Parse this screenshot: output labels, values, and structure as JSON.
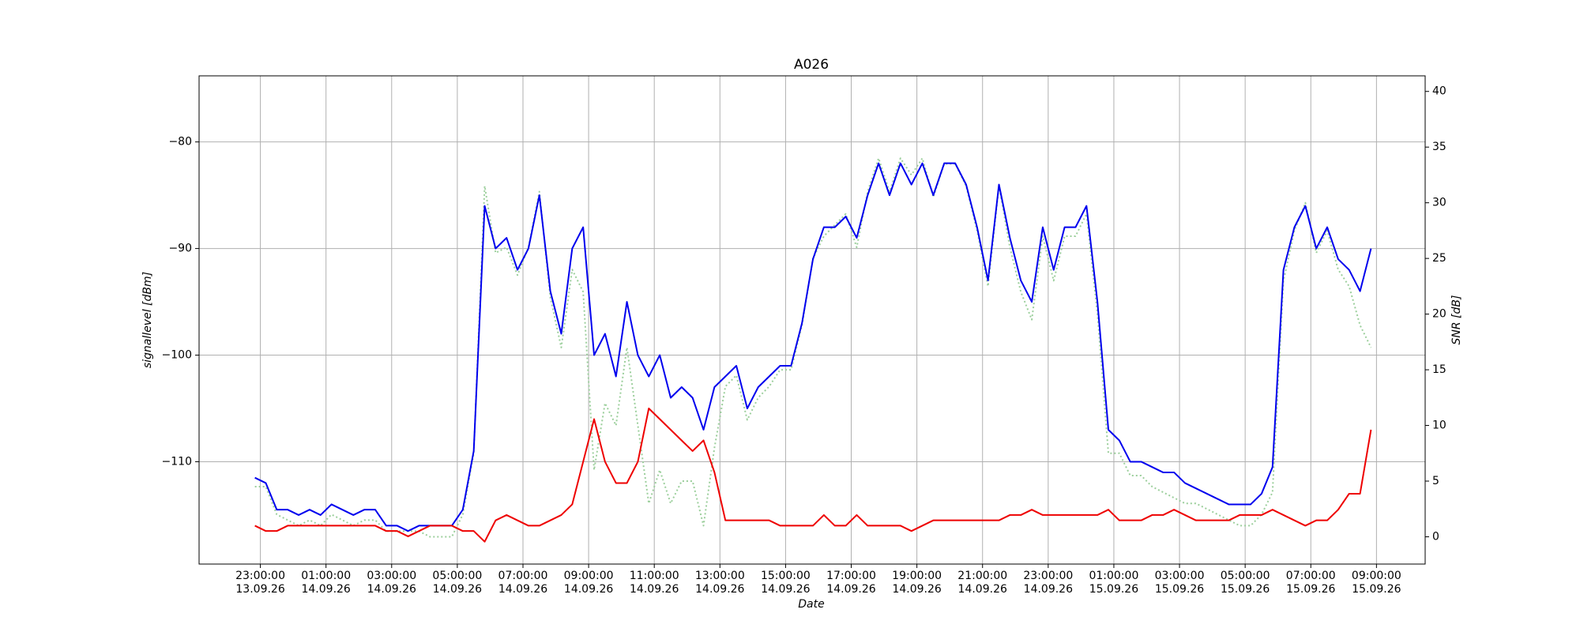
{
  "chart_data": {
    "type": "line",
    "title": "A026",
    "xlabel": "Date",
    "ylabel": "signallevel [dBm]",
    "y2label": "SNR [dB]",
    "grid": true,
    "x": [
      "13.09.26 22:50:00",
      "13.09.26 23:10:00",
      "13.09.26 23:30:00",
      "13.09.26 23:50:00",
      "14.09.26 00:10:00",
      "14.09.26 00:30:00",
      "14.09.26 00:50:00",
      "14.09.26 01:10:00",
      "14.09.26 01:30:00",
      "14.09.26 01:50:00",
      "14.09.26 02:10:00",
      "14.09.26 02:30:00",
      "14.09.26 02:50:00",
      "14.09.26 03:10:00",
      "14.09.26 03:30:00",
      "14.09.26 03:50:00",
      "14.09.26 04:10:00",
      "14.09.26 04:30:00",
      "14.09.26 04:50:00",
      "14.09.26 05:10:00",
      "14.09.26 05:30:00",
      "14.09.26 05:50:00",
      "14.09.26 06:10:00",
      "14.09.26 06:30:00",
      "14.09.26 06:50:00",
      "14.09.26 07:10:00",
      "14.09.26 07:30:00",
      "14.09.26 07:50:00",
      "14.09.26 08:10:00",
      "14.09.26 08:30:00",
      "14.09.26 08:50:00",
      "14.09.26 09:10:00",
      "14.09.26 09:30:00",
      "14.09.26 09:50:00",
      "14.09.26 10:10:00",
      "14.09.26 10:30:00",
      "14.09.26 10:50:00",
      "14.09.26 11:10:00",
      "14.09.26 11:30:00",
      "14.09.26 11:50:00",
      "14.09.26 12:10:00",
      "14.09.26 12:30:00",
      "14.09.26 12:50:00",
      "14.09.26 13:10:00",
      "14.09.26 13:30:00",
      "14.09.26 13:50:00",
      "14.09.26 14:10:00",
      "14.09.26 14:30:00",
      "14.09.26 14:50:00",
      "14.09.26 15:10:00",
      "14.09.26 15:30:00",
      "14.09.26 15:50:00",
      "14.09.26 16:10:00",
      "14.09.26 16:30:00",
      "14.09.26 16:50:00",
      "14.09.26 17:10:00",
      "14.09.26 17:30:00",
      "14.09.26 17:50:00",
      "14.09.26 18:10:00",
      "14.09.26 18:30:00",
      "14.09.26 18:50:00",
      "14.09.26 19:10:00",
      "14.09.26 19:30:00",
      "14.09.26 19:50:00",
      "14.09.26 20:10:00",
      "14.09.26 20:30:00",
      "14.09.26 20:50:00",
      "14.09.26 21:10:00",
      "14.09.26 21:30:00",
      "14.09.26 21:50:00",
      "14.09.26 22:10:00",
      "14.09.26 22:30:00",
      "14.09.26 22:50:00",
      "14.09.26 23:10:00",
      "14.09.26 23:30:00",
      "14.09.26 23:50:00",
      "15.09.26 00:10:00",
      "15.09.26 00:30:00",
      "15.09.26 00:50:00",
      "15.09.26 01:10:00",
      "15.09.26 01:30:00",
      "15.09.26 01:50:00",
      "15.09.26 02:10:00",
      "15.09.26 02:30:00",
      "15.09.26 02:50:00",
      "15.09.26 03:10:00",
      "15.09.26 03:30:00",
      "15.09.26 03:50:00",
      "15.09.26 04:10:00",
      "15.09.26 04:30:00",
      "15.09.26 04:50:00",
      "15.09.26 05:10:00",
      "15.09.26 05:30:00",
      "15.09.26 05:50:00",
      "15.09.26 06:10:00",
      "15.09.26 06:30:00",
      "15.09.26 06:50:00",
      "15.09.26 07:10:00",
      "15.09.26 07:30:00",
      "15.09.26 07:50:00",
      "15.09.26 08:10:00",
      "15.09.26 08:30:00",
      "15.09.26 08:50:00"
    ],
    "xlim": [
      "13.09.26 21:08:00",
      "15.09.26 10:29:00"
    ],
    "xticks": [
      {
        "value": "13.09.26 23:00:00",
        "label": [
          "23:00:00",
          "13.09.26"
        ]
      },
      {
        "value": "14.09.26 01:00:00",
        "label": [
          "01:00:00",
          "14.09.26"
        ]
      },
      {
        "value": "14.09.26 03:00:00",
        "label": [
          "03:00:00",
          "14.09.26"
        ]
      },
      {
        "value": "14.09.26 05:00:00",
        "label": [
          "05:00:00",
          "14.09.26"
        ]
      },
      {
        "value": "14.09.26 07:00:00",
        "label": [
          "07:00:00",
          "14.09.26"
        ]
      },
      {
        "value": "14.09.26 09:00:00",
        "label": [
          "09:00:00",
          "14.09.26"
        ]
      },
      {
        "value": "14.09.26 11:00:00",
        "label": [
          "11:00:00",
          "14.09.26"
        ]
      },
      {
        "value": "14.09.26 13:00:00",
        "label": [
          "13:00:00",
          "14.09.26"
        ]
      },
      {
        "value": "14.09.26 15:00:00",
        "label": [
          "15:00:00",
          "14.09.26"
        ]
      },
      {
        "value": "14.09.26 17:00:00",
        "label": [
          "17:00:00",
          "14.09.26"
        ]
      },
      {
        "value": "14.09.26 19:00:00",
        "label": [
          "19:00:00",
          "14.09.26"
        ]
      },
      {
        "value": "14.09.26 21:00:00",
        "label": [
          "21:00:00",
          "14.09.26"
        ]
      },
      {
        "value": "14.09.26 23:00:00",
        "label": [
          "23:00:00",
          "14.09.26"
        ]
      },
      {
        "value": "15.09.26 01:00:00",
        "label": [
          "01:00:00",
          "15.09.26"
        ]
      },
      {
        "value": "15.09.26 03:00:00",
        "label": [
          "03:00:00",
          "15.09.26"
        ]
      },
      {
        "value": "15.09.26 05:00:00",
        "label": [
          "05:00:00",
          "15.09.26"
        ]
      },
      {
        "value": "15.09.26 07:00:00",
        "label": [
          "07:00:00",
          "15.09.26"
        ]
      },
      {
        "value": "15.09.26 09:00:00",
        "label": [
          "09:00:00",
          "15.09.26"
        ]
      }
    ],
    "ylim": [
      -119.6,
      -73.8
    ],
    "yticks": [
      {
        "value": -110,
        "label": "−110"
      },
      {
        "value": -100,
        "label": "−100"
      },
      {
        "value": -90,
        "label": "−90"
      },
      {
        "value": -80,
        "label": "−80"
      }
    ],
    "y2lim": [
      -2.45,
      41.4
    ],
    "y2ticks": [
      0,
      5,
      10,
      15,
      20,
      25,
      30,
      35,
      40
    ],
    "series": [
      {
        "color": "#9ccf9c",
        "linestyle": "dotted",
        "axis": "y2",
        "values": [
          4.5,
          4.5,
          2,
          1.5,
          1,
          1.5,
          1,
          2,
          1.5,
          1,
          1.5,
          1.5,
          0.5,
          0.5,
          0.5,
          0.5,
          0,
          0,
          0,
          2,
          7.5,
          31.5,
          25.5,
          26,
          23.5,
          26,
          31,
          21.5,
          17,
          24,
          22,
          6,
          12,
          10,
          17,
          10,
          3,
          6,
          3,
          5,
          5,
          1,
          8,
          13.5,
          14.5,
          10.5,
          12.5,
          13.5,
          15,
          15,
          19,
          25,
          27,
          28,
          29,
          26,
          31,
          34,
          31,
          34,
          32.5,
          34,
          30.5,
          33.5,
          33.5,
          31.5,
          27.5,
          22.5,
          31.5,
          26,
          22,
          19.5,
          27,
          23,
          27,
          27,
          29,
          20,
          7.5,
          7.5,
          5.5,
          5.5,
          4.5,
          4,
          3.5,
          3,
          3,
          2.5,
          2,
          1.5,
          1,
          1,
          2,
          4,
          23,
          27.5,
          30,
          25.5,
          27.5,
          24,
          22.5,
          19,
          17
        ]
      },
      {
        "color": "#0000ee",
        "linestyle": "solid",
        "axis": "y",
        "values": [
          -111.5,
          -112,
          -114.5,
          -114.5,
          -115,
          -114.5,
          -115,
          -114,
          -114.5,
          -115,
          -114.5,
          -114.5,
          -116,
          -116,
          -116.5,
          -116,
          -116,
          -116,
          -116,
          -114.5,
          -109,
          -86,
          -90,
          -89,
          -92,
          -90,
          -85,
          -94,
          -98,
          -90,
          -88,
          -100,
          -98,
          -102,
          -95,
          -100,
          -102,
          -100,
          -104,
          -103,
          -104,
          -107,
          -103,
          -102,
          -101,
          -105,
          -103,
          -102,
          -101,
          -101,
          -97,
          -91,
          -88,
          -88,
          -87,
          -89,
          -85,
          -82,
          -85,
          -82,
          -84,
          -82,
          -85,
          -82,
          -82,
          -84,
          -88,
          -93,
          -84,
          -89,
          -93,
          -95,
          -88,
          -92,
          -88,
          -88,
          -86,
          -95,
          -107,
          -108,
          -110,
          -110,
          -110.5,
          -111,
          -111,
          -112,
          -112.5,
          -113,
          -113.5,
          -114,
          -114,
          -114,
          -113,
          -110.5,
          -92,
          -88,
          -86,
          -90,
          -88,
          -91,
          -92,
          -94,
          -90
        ]
      },
      {
        "color": "#ee0000",
        "linestyle": "solid",
        "axis": "y",
        "values": [
          -116,
          -116.5,
          -116.5,
          -116,
          -116,
          -116,
          -116,
          -116,
          -116,
          -116,
          -116,
          -116,
          -116.5,
          -116.5,
          -117,
          -116.5,
          -116,
          -116,
          -116,
          -116.5,
          -116.5,
          -117.5,
          -115.5,
          -115,
          -115.5,
          -116,
          -116,
          -115.5,
          -115,
          -114,
          -110,
          -106,
          -110,
          -112,
          -112,
          -110,
          -105,
          -106,
          -107,
          -108,
          -109,
          -108,
          -111,
          -115.5,
          -115.5,
          -115.5,
          -115.5,
          -115.5,
          -116,
          -116,
          -116,
          -116,
          -115,
          -116,
          -116,
          -115,
          -116,
          -116,
          -116,
          -116,
          -116.5,
          -116,
          -115.5,
          -115.5,
          -115.5,
          -115.5,
          -115.5,
          -115.5,
          -115.5,
          -115,
          -115,
          -114.5,
          -115,
          -115,
          -115,
          -115,
          -115,
          -115,
          -114.5,
          -115.5,
          -115.5,
          -115.5,
          -115,
          -115,
          -114.5,
          -115,
          -115.5,
          -115.5,
          -115.5,
          -115.5,
          -115,
          -115,
          -115,
          -114.5,
          -115,
          -115.5,
          -116,
          -115.5,
          -115.5,
          -114.5,
          -113,
          -113,
          -107
        ]
      }
    ]
  }
}
